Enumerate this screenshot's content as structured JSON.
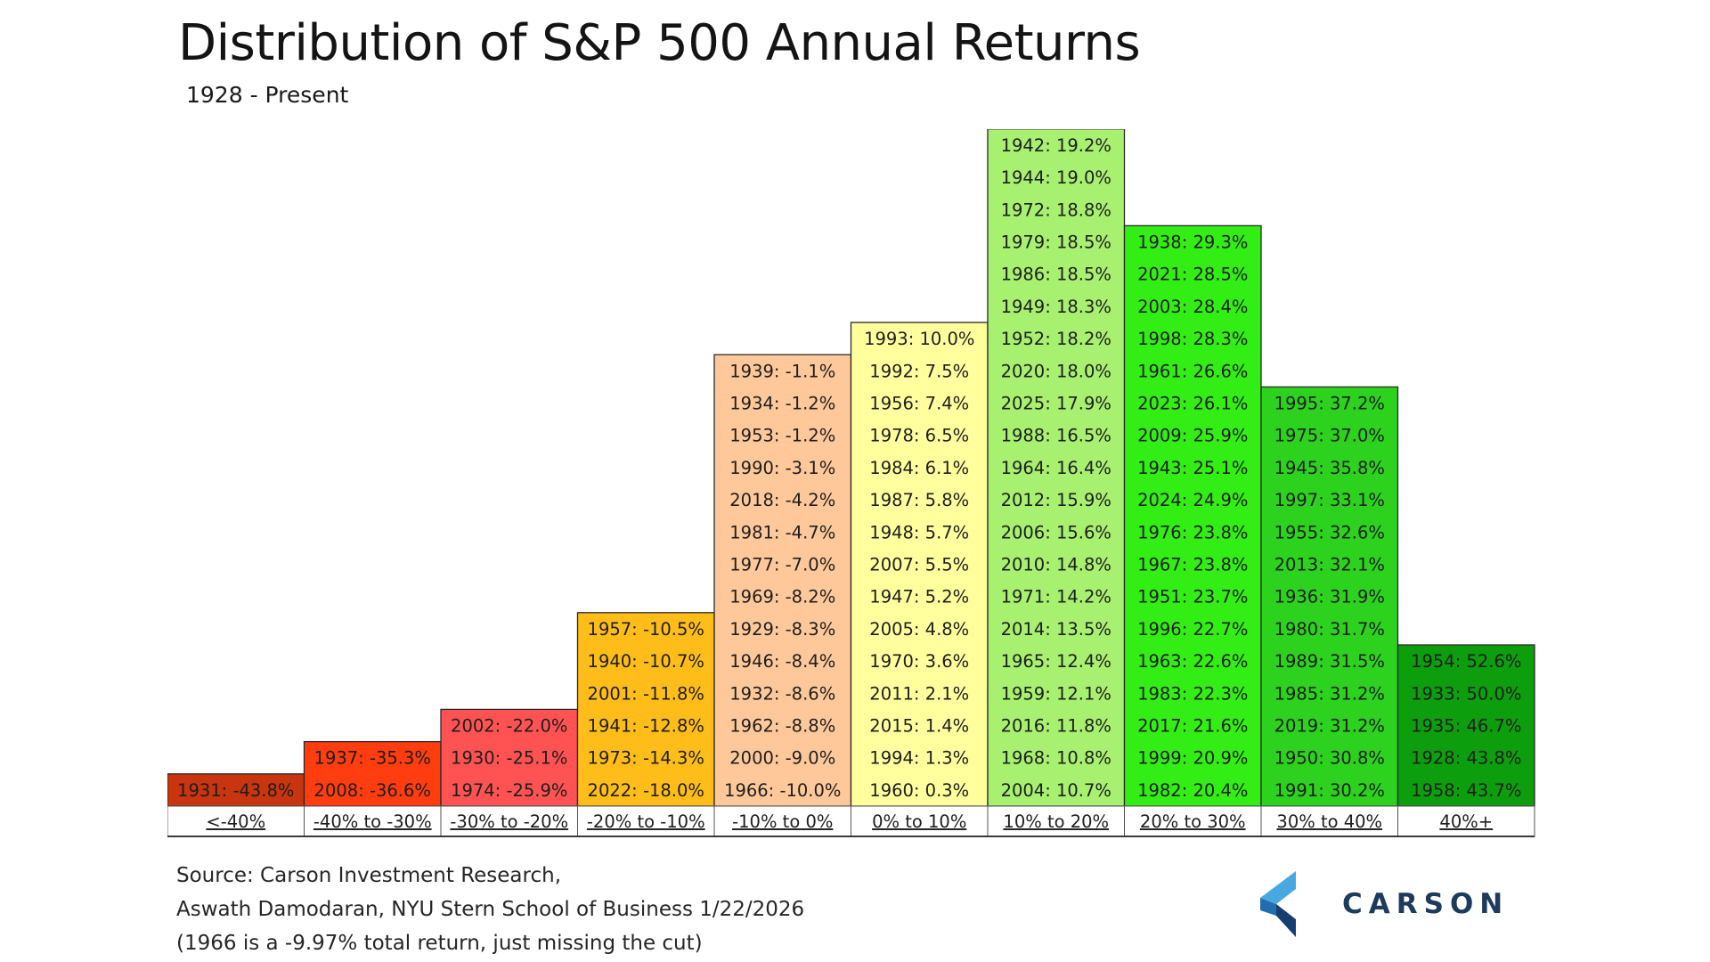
{
  "chart_data": {
    "type": "histogram-table",
    "title": "Distribution of S&P 500 Annual Returns",
    "subtitle": "1928 - Present",
    "bins": [
      {
        "label": "<-40%",
        "color": "#c8350f",
        "entries": [
          "1931: -43.8%"
        ]
      },
      {
        "label": "-40% to -30%",
        "color": "#ff3d0e",
        "entries": [
          "1937: -35.3%",
          "2008: -36.6%"
        ]
      },
      {
        "label": "-30% to -20%",
        "color": "#ff5353",
        "entries": [
          "2002: -22.0%",
          "1930: -25.1%",
          "1974: -25.9%"
        ]
      },
      {
        "label": "-20% to -10%",
        "color": "#ffbd1a",
        "entries": [
          "1957: -10.5%",
          "1940: -10.7%",
          "2001: -11.8%",
          "1941: -12.8%",
          "1973: -14.3%",
          "2022: -18.0%"
        ]
      },
      {
        "label": "-10% to 0%",
        "color": "#ffc89a",
        "entries": [
          "1939: -1.1%",
          "1934: -1.2%",
          "1953: -1.2%",
          "1990: -3.1%",
          "2018: -4.2%",
          "1981: -4.7%",
          "1977: -7.0%",
          "1969: -8.2%",
          "1929: -8.3%",
          "1946: -8.4%",
          "1932: -8.6%",
          "1962: -8.8%",
          "2000: -9.0%",
          "1966: -10.0%"
        ]
      },
      {
        "label": "0% to 10%",
        "color": "#ffff9e",
        "entries": [
          "1993: 10.0%",
          "1992: 7.5%",
          "1956: 7.4%",
          "1978: 6.5%",
          "1984: 6.1%",
          "1987: 5.8%",
          "1948: 5.7%",
          "2007: 5.5%",
          "1947: 5.2%",
          "2005: 4.8%",
          "1970: 3.6%",
          "2011: 2.1%",
          "2015: 1.4%",
          "1994: 1.3%",
          "1960: 0.3%"
        ]
      },
      {
        "label": "10% to 20%",
        "color": "#a8f070",
        "entries": [
          "1942: 19.2%",
          "1944: 19.0%",
          "1972: 18.8%",
          "1979: 18.5%",
          "1986: 18.5%",
          "1949: 18.3%",
          "1952: 18.2%",
          "2020: 18.0%",
          "2025: 17.9%",
          "1988: 16.5%",
          "1964: 16.4%",
          "2012: 15.9%",
          "2006: 15.6%",
          "2010: 14.8%",
          "1971: 14.2%",
          "2014: 13.5%",
          "1965: 12.4%",
          "1959: 12.1%",
          "2016: 11.8%",
          "1968: 10.8%",
          "2004: 10.7%"
        ]
      },
      {
        "label": "20% to 30%",
        "color": "#33ee15",
        "entries": [
          "1938: 29.3%",
          "2021: 28.5%",
          "2003: 28.4%",
          "1998: 28.3%",
          "1961: 26.6%",
          "2023: 26.1%",
          "2009: 25.9%",
          "1943: 25.1%",
          "2024: 24.9%",
          "1976: 23.8%",
          "1967: 23.8%",
          "1951: 23.7%",
          "1996: 22.7%",
          "1963: 22.6%",
          "1983: 22.3%",
          "2017: 21.6%",
          "1999: 20.9%",
          "1982: 20.4%"
        ]
      },
      {
        "label": "30% to 40%",
        "color": "#2cd21e",
        "entries": [
          "1995: 37.2%",
          "1975: 37.0%",
          "1945: 35.8%",
          "1997: 33.1%",
          "1955: 32.6%",
          "2013: 32.1%",
          "1936: 31.9%",
          "1980: 31.7%",
          "1989: 31.5%",
          "1985: 31.2%",
          "2019: 31.2%",
          "1950: 30.8%",
          "1991: 30.2%"
        ]
      },
      {
        "label": "40%+",
        "color": "#0d9e0d",
        "entries": [
          "1954: 52.6%",
          "1933: 50.0%",
          "1935: 46.7%",
          "1928: 43.8%",
          "1958: 43.7%"
        ]
      }
    ]
  },
  "footnotes": {
    "line1": "Source: Carson Investment Research,",
    "line2": "Aswath Damodaran, NYU Stern School of Business 1/22/2026",
    "line3": "(1966 is a -9.97% total return, just missing the cut)"
  },
  "logo": {
    "wordmark": "CARSON",
    "colors": {
      "mark_light": "#4aa8e0",
      "mark_mid": "#1f6fb0",
      "mark_dark": "#163e70"
    }
  }
}
